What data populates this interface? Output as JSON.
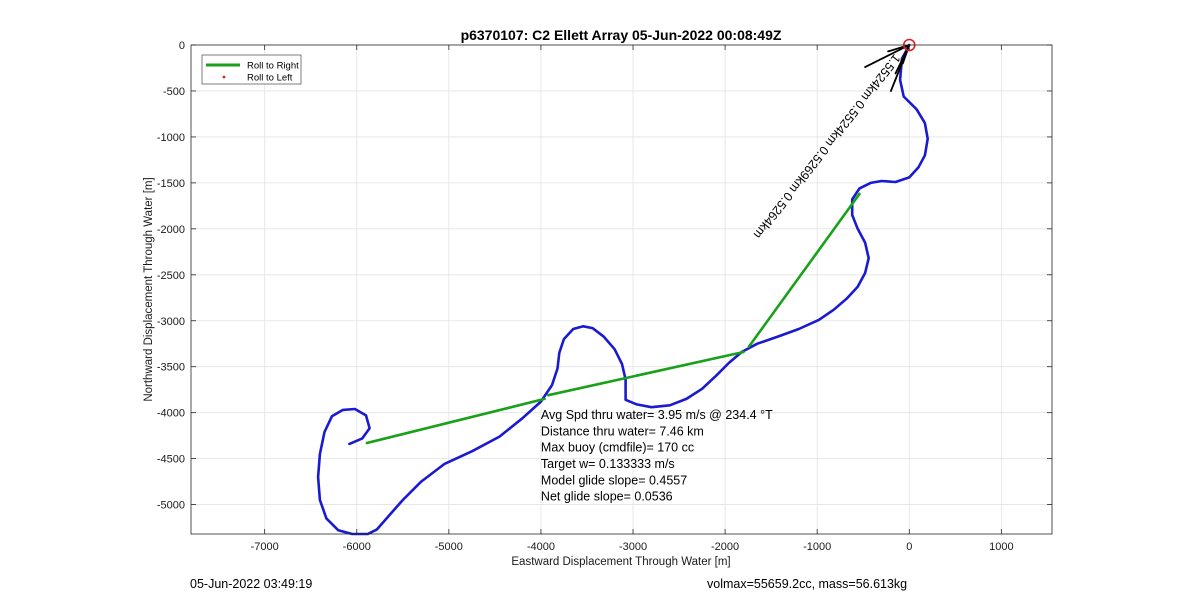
{
  "chart_data": {
    "type": "line",
    "title": "p6370107: C2 Ellett Array 05-Jun-2022 00:08:49Z",
    "xlabel": "Eastward Displacement Through Water [m]",
    "ylabel": "Northward Displacement Through Water [m]",
    "xlim": [
      -7800,
      1550
    ],
    "ylim": [
      -5320,
      0
    ],
    "xticks": [
      -7000,
      -6000,
      -5000,
      -4000,
      -3000,
      -2000,
      -1000,
      0,
      1000
    ],
    "yticks": [
      0,
      -500,
      -1000,
      -1500,
      -2000,
      -2500,
      -3000,
      -3500,
      -4000,
      -4500,
      -5000
    ],
    "grid": true,
    "legend_position": "top-left",
    "series": [
      {
        "name": "Roll to Right",
        "color": "#1aa01a",
        "style": "line",
        "points": [
          [
            -1740,
            -3280
          ],
          [
            -540,
            -1620
          ],
          [
            -1800,
            -3340
          ],
          [
            -3920,
            -3810
          ],
          [
            -3960,
            -3850
          ],
          [
            -5890,
            -4330
          ]
        ]
      },
      {
        "name": "Roll to Left",
        "color": "#e02020",
        "style": "marker",
        "points": []
      },
      {
        "name": "",
        "color": "#1a1ad0",
        "style": "line",
        "points": [
          [
            0,
            0
          ],
          [
            -80,
            -150
          ],
          [
            -100,
            -380
          ],
          [
            -60,
            -560
          ],
          [
            80,
            -700
          ],
          [
            170,
            -850
          ],
          [
            200,
            -1020
          ],
          [
            170,
            -1200
          ],
          [
            100,
            -1330
          ],
          [
            0,
            -1440
          ],
          [
            -150,
            -1490
          ],
          [
            -300,
            -1480
          ],
          [
            -420,
            -1500
          ],
          [
            -540,
            -1560
          ],
          [
            -620,
            -1680
          ],
          [
            -620,
            -1850
          ],
          [
            -560,
            -2000
          ],
          [
            -480,
            -2150
          ],
          [
            -440,
            -2320
          ],
          [
            -480,
            -2480
          ],
          [
            -560,
            -2630
          ],
          [
            -680,
            -2760
          ],
          [
            -820,
            -2880
          ],
          [
            -980,
            -2990
          ],
          [
            -1200,
            -3090
          ],
          [
            -1420,
            -3170
          ],
          [
            -1650,
            -3250
          ],
          [
            -1820,
            -3340
          ],
          [
            -1960,
            -3460
          ],
          [
            -2100,
            -3600
          ],
          [
            -2250,
            -3740
          ],
          [
            -2420,
            -3850
          ],
          [
            -2600,
            -3920
          ],
          [
            -2800,
            -3940
          ],
          [
            -2960,
            -3910
          ],
          [
            -3080,
            -3860
          ],
          [
            -3080,
            -3780
          ],
          [
            -3080,
            -3640
          ],
          [
            -3120,
            -3470
          ],
          [
            -3200,
            -3310
          ],
          [
            -3320,
            -3170
          ],
          [
            -3440,
            -3080
          ],
          [
            -3540,
            -3060
          ],
          [
            -3650,
            -3090
          ],
          [
            -3750,
            -3200
          ],
          [
            -3800,
            -3350
          ],
          [
            -3820,
            -3520
          ],
          [
            -3880,
            -3700
          ],
          [
            -4000,
            -3880
          ],
          [
            -4200,
            -4060
          ],
          [
            -4450,
            -4260
          ],
          [
            -4750,
            -4420
          ],
          [
            -5050,
            -4560
          ],
          [
            -5300,
            -4750
          ],
          [
            -5500,
            -4950
          ],
          [
            -5650,
            -5120
          ],
          [
            -5780,
            -5270
          ],
          [
            -5880,
            -5320
          ],
          [
            -6050,
            -5320
          ],
          [
            -6200,
            -5280
          ],
          [
            -6330,
            -5150
          ],
          [
            -6400,
            -4950
          ],
          [
            -6420,
            -4700
          ],
          [
            -6400,
            -4450
          ],
          [
            -6350,
            -4210
          ],
          [
            -6270,
            -4040
          ],
          [
            -6150,
            -3970
          ],
          [
            -6020,
            -3960
          ],
          [
            -5900,
            -4030
          ],
          [
            -5860,
            -4170
          ],
          [
            -5940,
            -4280
          ],
          [
            -6080,
            -4340
          ]
        ]
      },
      {
        "name": "",
        "color": "#000000",
        "style": "line",
        "points": [
          [
            0,
            0
          ],
          [
            -480,
            -240
          ],
          [
            0,
            0
          ],
          [
            -200,
            -500
          ],
          [
            0,
            0
          ],
          [
            -150,
            -310
          ],
          [
            0,
            0
          ],
          [
            -70,
            -200
          ],
          [
            0,
            0
          ],
          [
            -230,
            -70
          ]
        ]
      }
    ],
    "start_marker": {
      "x": 0,
      "y": 0,
      "color": "#e02020"
    },
    "rotated_annotation": "1.5524km 0.5524km 0.5269km 0.5264km",
    "stats": [
      "Avg Spd thru water=  3.95 m/s @ 234.4 °T",
      "Distance thru water=  7.46 km",
      "Max buoy (cmdfile)= 170 cc",
      "Target w= 0.133333 m/s",
      "Model glide slope= 0.4557",
      "Net glide slope= 0.0536"
    ]
  },
  "footer": {
    "left": "05-Jun-2022 03:49:19",
    "right": "volmax=55659.2cc, mass=56.613kg"
  }
}
